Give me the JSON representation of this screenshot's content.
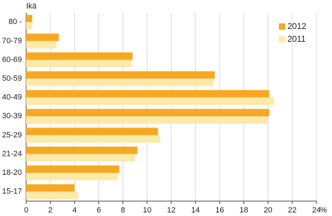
{
  "chart_data": {
    "type": "hbar",
    "y_label": "Ikä",
    "x_unit": "%",
    "categories": [
      "80 -",
      "70-79",
      "60-69",
      "50-59",
      "40-49",
      "30-39",
      "25-29",
      "21-24",
      "18-20",
      "15-17"
    ],
    "series": [
      {
        "name": "2012",
        "color": "#f7a823",
        "values": [
          0.5,
          2.7,
          8.8,
          15.6,
          20.1,
          20.1,
          10.9,
          9.2,
          7.7,
          4.0
        ]
      },
      {
        "name": "2011",
        "color": "#fde9a8",
        "values": [
          0.5,
          2.5,
          8.7,
          15.5,
          20.5,
          20.0,
          11.1,
          9.0,
          7.6,
          4.3
        ]
      }
    ],
    "xlim": [
      0,
      24
    ],
    "xticks": [
      0,
      2,
      4,
      6,
      8,
      10,
      12,
      14,
      16,
      18,
      20,
      22,
      24
    ],
    "grid": true,
    "legend": "top-right"
  }
}
